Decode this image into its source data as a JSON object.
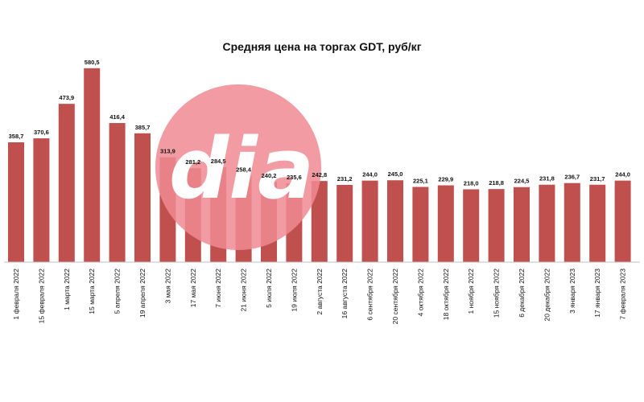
{
  "chart_data": {
    "type": "bar",
    "title": "Средняя цена на торгах GDT, руб/кг",
    "xlabel": "",
    "ylabel": "",
    "ylim": [
      0,
      650
    ],
    "grid": false,
    "legend": "none",
    "bar_color": "#c0504d",
    "categories": [
      "1 февраля 2022",
      "15 февраля 2022",
      "1 марта 2022",
      "15 марта 2022",
      "5 апреля 2022",
      "19 апреля 2022",
      "3 мая 2022",
      "17 мая 2022",
      "7 июня 2022",
      "21 июня 2022",
      "5 июля 2022",
      "19 июля 2022",
      "2 августа 2022",
      "16 августа 2022",
      "6 сентября 2022",
      "20 сентября 2022",
      "4 октября 2022",
      "18 октября 2022",
      "1 ноября 2022",
      "15 ноября 2022",
      "6 декабря 2022",
      "20 декабря 2022",
      "3 января 2023",
      "17 января 2023",
      "7 февраля 2023"
    ],
    "values": [
      358.7,
      370.6,
      473.9,
      580.5,
      416.4,
      385.7,
      313.9,
      281.2,
      284.5,
      258.4,
      240.2,
      235.6,
      242.8,
      231.2,
      244.0,
      245.0,
      225.1,
      229.9,
      218.0,
      218.8,
      224.5,
      231.8,
      236.7,
      231.7,
      244.0
    ],
    "value_labels": [
      "358,7",
      "370,6",
      "473,9",
      "580,5",
      "416,4",
      "385,7",
      "313,9",
      "281,2",
      "284,5",
      "258,4",
      "240,2",
      "235,6",
      "242,8",
      "231,2",
      "244,0",
      "245,0",
      "225,1",
      "229,9",
      "218,0",
      "218,8",
      "224,5",
      "231,8",
      "236,7",
      "231,7",
      "244,0"
    ]
  },
  "watermark": {
    "text": "dia",
    "color": "#f08a93"
  }
}
